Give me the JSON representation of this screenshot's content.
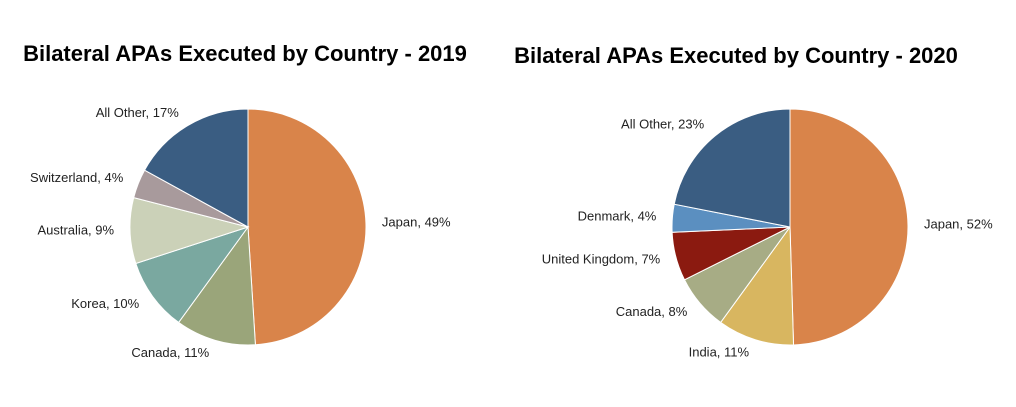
{
  "chart_data": [
    {
      "type": "pie",
      "title": "Bilateral APAs Executed by Country - 2019",
      "values": [
        49,
        11,
        10,
        9,
        4,
        17
      ],
      "value_labels": [
        "Japan, 49%",
        "Canada, 11%",
        "Korea, 10%",
        "Australia, 9%",
        "Switzerland, 4%",
        "All Other, 17%"
      ],
      "colors": [
        "#d9844a",
        "#9aa57a",
        "#7aa8a0",
        "#cbd1b8",
        "#a89a9c",
        "#3a5d82"
      ]
    },
    {
      "type": "pie",
      "title": "Bilateral APAs Executed by Country - 2020",
      "values": [
        52,
        11,
        8,
        7,
        4,
        23
      ],
      "value_labels": [
        "Japan, 52%",
        "India, 11%",
        "Canada, 8%",
        "United Kingdom, 7%",
        "Denmark, 4%",
        "All Other, 23%"
      ],
      "colors": [
        "#d9844a",
        "#d8b660",
        "#a7ac85",
        "#8b1a10",
        "#5b8fc0",
        "#3a5d82"
      ]
    }
  ]
}
